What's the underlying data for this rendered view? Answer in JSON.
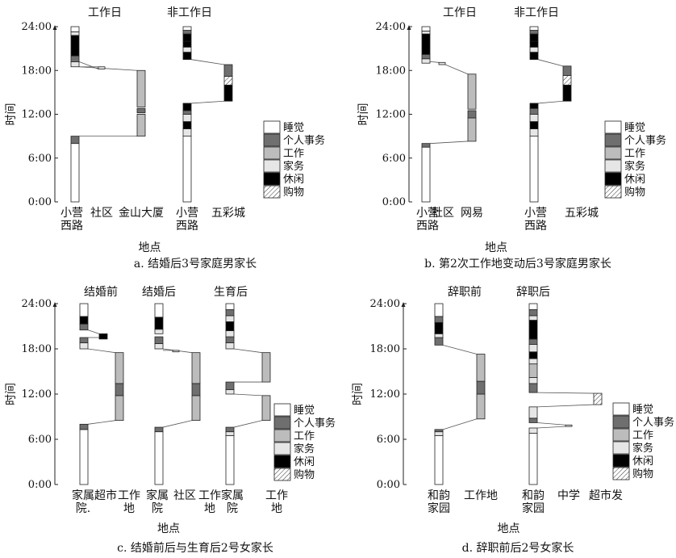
{
  "legend_items": [
    {
      "key": "sleep",
      "label": "睡觉"
    },
    {
      "key": "personal",
      "label": "个人事务"
    },
    {
      "key": "work",
      "label": "工作"
    },
    {
      "key": "house",
      "label": "家务"
    },
    {
      "key": "leisure",
      "label": "休闲"
    },
    {
      "key": "shop",
      "label": "购物"
    }
  ],
  "activity_colors": {
    "sleep": "#ffffff",
    "personal": "#6f6f6f",
    "work": "#bcbcbc",
    "house": "#e6e6e6",
    "leisure": "#000000",
    "shop": "hatch"
  },
  "panels": [
    {
      "id": "a",
      "caption": "a. 结婚后3号家庭男家长",
      "ylabel": "时间",
      "xlabel": "地点",
      "yticks": [
        "0:00",
        "6:00",
        "12:00",
        "18:00",
        "24:00"
      ],
      "section_labels": [
        "工作日",
        "非工作日"
      ],
      "location_labels": [
        [
          "小营",
          "西路"
        ],
        [
          "社区"
        ],
        [
          "金山大厦"
        ],
        [
          "小营",
          "西路"
        ],
        [
          "五彩城"
        ]
      ],
      "bars": [
        {
          "loc": 0,
          "segs": [
            [
              0,
              8,
              "sleep"
            ],
            [
              8,
              9,
              "personal"
            ],
            [
              18.5,
              19.2,
              "house"
            ],
            [
              19.2,
              20,
              "personal"
            ],
            [
              20,
              22.8,
              "leisure"
            ],
            [
              22.8,
              23.3,
              "house"
            ],
            [
              23.3,
              24,
              "sleep"
            ]
          ]
        },
        {
          "loc": 1,
          "segs": [
            [
              18.2,
              18.5,
              "house"
            ]
          ]
        },
        {
          "loc": 2,
          "segs": [
            [
              9,
              12,
              "work"
            ],
            [
              12.2,
              12.8,
              "personal"
            ],
            [
              13,
              18,
              "work"
            ]
          ]
        },
        {
          "loc": 3,
          "segs": [
            [
              0,
              9,
              "sleep"
            ],
            [
              9,
              10,
              "house"
            ],
            [
              10,
              11,
              "leisure"
            ],
            [
              11,
              12,
              "house"
            ],
            [
              12,
              12.5,
              "personal"
            ],
            [
              12.5,
              13.5,
              "leisure"
            ],
            [
              19.5,
              20.5,
              "leisure"
            ],
            [
              20.5,
              21.2,
              "house"
            ],
            [
              21.2,
              22,
              "leisure"
            ],
            [
              22,
              23,
              "leisure"
            ],
            [
              23,
              23.5,
              "personal"
            ],
            [
              23.5,
              24,
              "sleep"
            ]
          ]
        },
        {
          "loc": 4,
          "segs": [
            [
              13.8,
              16,
              "leisure"
            ],
            [
              16,
              17.2,
              "shop"
            ],
            [
              17.2,
              18.8,
              "personal"
            ]
          ]
        }
      ]
    },
    {
      "id": "b",
      "caption": "b. 第2次工作地变动后3号家庭男家长",
      "ylabel": "时间",
      "xlabel": "地点",
      "yticks": [
        "0:00",
        "6:00",
        "12:00",
        "18:00",
        "24:00"
      ],
      "section_labels": [
        "工作日",
        "非工作日"
      ],
      "location_labels": [
        [
          "小营",
          "西路"
        ],
        [
          "社区"
        ],
        [
          "网易"
        ],
        [
          "小营",
          "西路"
        ],
        [
          "五彩城"
        ]
      ],
      "bars": [
        {
          "loc": 0,
          "segs": [
            [
              0,
              7.5,
              "sleep"
            ],
            [
              7.5,
              8,
              "personal"
            ],
            [
              19,
              19.6,
              "house"
            ],
            [
              19.6,
              20.2,
              "personal"
            ],
            [
              20.2,
              23,
              "leisure"
            ],
            [
              23,
              23.4,
              "house"
            ],
            [
              23.4,
              24,
              "sleep"
            ]
          ]
        },
        {
          "loc": 1,
          "segs": [
            [
              18.8,
              19.1,
              "house"
            ]
          ]
        },
        {
          "loc": 2,
          "segs": [
            [
              8.3,
              11.5,
              "work"
            ],
            [
              11.5,
              12.5,
              "personal"
            ],
            [
              12.7,
              17.5,
              "work"
            ]
          ]
        },
        {
          "loc": 3,
          "segs": [
            [
              0,
              9,
              "sleep"
            ],
            [
              9,
              10,
              "house"
            ],
            [
              10,
              11,
              "leisure"
            ],
            [
              11,
              12,
              "house"
            ],
            [
              12,
              12.8,
              "personal"
            ],
            [
              12.8,
              13.5,
              "leisure"
            ],
            [
              19.5,
              20.5,
              "leisure"
            ],
            [
              20.5,
              21.2,
              "house"
            ],
            [
              21.2,
              22,
              "leisure"
            ],
            [
              22,
              23,
              "leisure"
            ],
            [
              23,
              23.5,
              "personal"
            ],
            [
              23.5,
              24,
              "sleep"
            ]
          ]
        },
        {
          "loc": 4,
          "segs": [
            [
              13.8,
              16,
              "leisure"
            ],
            [
              16,
              17.3,
              "shop"
            ],
            [
              17.3,
              18.6,
              "personal"
            ]
          ]
        }
      ]
    },
    {
      "id": "c",
      "caption": "c. 结婚前后与生育后2号女家长",
      "ylabel": "时间",
      "xlabel": "地点",
      "yticks": [
        "0:00",
        "6:00",
        "12:00",
        "18:00",
        "24:00"
      ],
      "section_labels": [
        "结婚前",
        "结婚后",
        "生育后"
      ],
      "location_labels": [
        [
          "家属",
          "院."
        ],
        [
          "超市"
        ],
        [
          "工作",
          "地"
        ],
        [
          "家属",
          "院"
        ],
        [
          "社区"
        ],
        [
          "工作",
          "地"
        ],
        [
          "家属",
          "院"
        ],
        [
          "工作",
          "地"
        ]
      ],
      "bars": [
        {
          "loc": 0,
          "segs": [
            [
              0,
              7.3,
              "sleep"
            ],
            [
              7.3,
              8,
              "personal"
            ],
            [
              18,
              18.8,
              "house"
            ],
            [
              18.8,
              19.5,
              "personal"
            ],
            [
              20.5,
              21.3,
              "personal"
            ],
            [
              21.3,
              22.3,
              "leisure"
            ],
            [
              22.3,
              24,
              "sleep"
            ]
          ]
        },
        {
          "loc": 1,
          "segs": [
            [
              19.3,
              20,
              "leisure"
            ]
          ]
        },
        {
          "loc": 2,
          "segs": [
            [
              8.5,
              11.8,
              "work"
            ],
            [
              11.8,
              13.4,
              "personal"
            ],
            [
              13.4,
              17.5,
              "work"
            ]
          ]
        },
        {
          "loc": 3,
          "segs": [
            [
              0,
              7,
              "sleep"
            ],
            [
              7,
              7.6,
              "personal"
            ],
            [
              18,
              18.7,
              "house"
            ],
            [
              18.7,
              19.6,
              "personal"
            ],
            [
              20,
              20.6,
              "house"
            ],
            [
              20.6,
              22.2,
              "leisure"
            ],
            [
              22.2,
              24,
              "sleep"
            ]
          ]
        },
        {
          "loc": 4,
          "segs": [
            [
              17.6,
              17.8,
              "house"
            ]
          ]
        },
        {
          "loc": 5,
          "segs": [
            [
              8.5,
              11.8,
              "work"
            ],
            [
              11.8,
              13.4,
              "personal"
            ],
            [
              13.4,
              17.5,
              "work"
            ]
          ]
        },
        {
          "loc": 6,
          "segs": [
            [
              0,
              6.5,
              "sleep"
            ],
            [
              6.5,
              7,
              "house"
            ],
            [
              7,
              7.6,
              "personal"
            ],
            [
              12,
              12.6,
              "house"
            ],
            [
              12.6,
              13.6,
              "personal"
            ],
            [
              18,
              18.8,
              "house"
            ],
            [
              18.8,
              19.6,
              "personal"
            ],
            [
              19.6,
              20.4,
              "house"
            ],
            [
              20.4,
              21.6,
              "leisure"
            ],
            [
              21.6,
              22.4,
              "house"
            ],
            [
              22.4,
              23.2,
              "personal"
            ],
            [
              23.2,
              24,
              "sleep"
            ]
          ]
        },
        {
          "loc": 7,
          "segs": [
            [
              8.5,
              11.8,
              "work"
            ],
            [
              13.6,
              17.5,
              "work"
            ]
          ]
        }
      ]
    },
    {
      "id": "d",
      "caption": "d. 辞职前后2号女家长",
      "ylabel": "时间",
      "xlabel": "地点",
      "yticks": [
        "0:00",
        "6:00",
        "12:00",
        "18:00",
        "24:00"
      ],
      "section_labels": [
        "辞职前",
        "辞职后"
      ],
      "location_labels": [
        [
          "和韵",
          "家园"
        ],
        [
          "工作地"
        ],
        [
          "和韵",
          "家园"
        ],
        [
          "中学"
        ],
        [
          "超市发"
        ]
      ],
      "bars": [
        {
          "loc": 0,
          "segs": [
            [
              0,
              6.5,
              "sleep"
            ],
            [
              6.5,
              7,
              "house"
            ],
            [
              7,
              7.3,
              "personal"
            ],
            [
              18.5,
              19.5,
              "personal"
            ],
            [
              19.5,
              20,
              "house"
            ],
            [
              20,
              21.5,
              "leisure"
            ],
            [
              21.5,
              22.3,
              "personal"
            ],
            [
              22.3,
              24,
              "sleep"
            ]
          ]
        },
        {
          "loc": 1,
          "segs": [
            [
              8.7,
              12,
              "work"
            ],
            [
              12,
              13.7,
              "personal"
            ],
            [
              13.7,
              17.3,
              "work"
            ]
          ]
        },
        {
          "loc": 2,
          "segs": [
            [
              0,
              6.8,
              "sleep"
            ],
            [
              6.8,
              7.5,
              "house"
            ],
            [
              8.2,
              8.8,
              "personal"
            ],
            [
              8.8,
              10.3,
              "house"
            ],
            [
              12.2,
              13.4,
              "personal"
            ],
            [
              13.4,
              14.2,
              "house"
            ],
            [
              14.2,
              16,
              "work"
            ],
            [
              16,
              16.7,
              "house"
            ],
            [
              16.7,
              17.6,
              "leisure"
            ],
            [
              17.6,
              18.6,
              "house"
            ],
            [
              18.6,
              19.3,
              "personal"
            ],
            [
              19.3,
              21.8,
              "leisure"
            ],
            [
              21.8,
              22.4,
              "house"
            ],
            [
              22.4,
              23.2,
              "personal"
            ],
            [
              23.2,
              24,
              "sleep"
            ]
          ]
        },
        {
          "loc": 3,
          "segs": [
            [
              7.7,
              7.9,
              "house"
            ]
          ]
        },
        {
          "loc": 4,
          "segs": [
            [
              10.6,
              12.1,
              "shop"
            ]
          ]
        }
      ]
    }
  ]
}
